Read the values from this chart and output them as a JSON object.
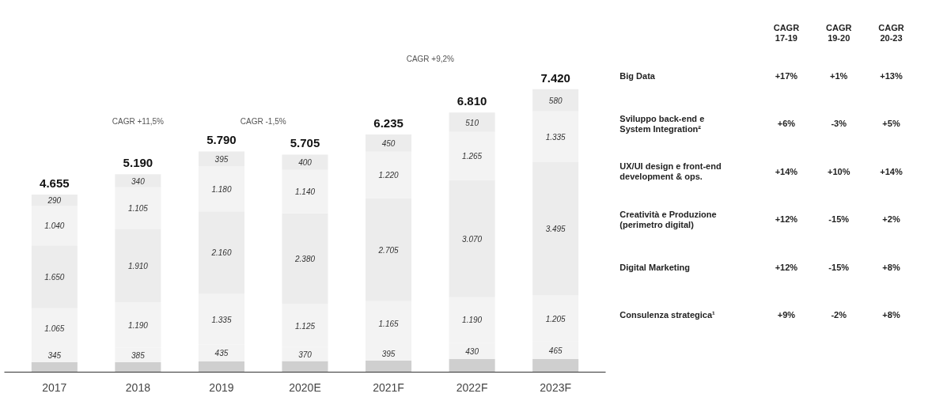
{
  "chart_data": [
    {
      "type": "bar",
      "stacked": true,
      "categories": [
        "2017",
        "2018",
        "2019",
        "2020E",
        "2021F",
        "2022F",
        "2023F"
      ],
      "series": [
        {
          "color": "#cfcfcf",
          "values": [
            265,
            260,
            285,
            290,
            300,
            345,
            340
          ]
        },
        {
          "color": "#f3f3f3",
          "values": [
            345,
            385,
            435,
            370,
            395,
            430,
            465
          ],
          "value_labels": [
            "345",
            "385",
            "435",
            "370",
            "395",
            "430",
            "465"
          ]
        },
        {
          "color": "#f3f3f3",
          "values": [
            1065,
            1190,
            1335,
            1125,
            1165,
            1190,
            1205
          ],
          "value_labels": [
            "1.065",
            "1.190",
            "1.335",
            "1.125",
            "1.165",
            "1.190",
            "1.205"
          ]
        },
        {
          "color": "#ececec",
          "values": [
            1650,
            1910,
            2160,
            2380,
            2705,
            3070,
            3495
          ],
          "value_labels": [
            "1.650",
            "1.910",
            "2.160",
            "2.380",
            "2.705",
            "3.070",
            "3.495"
          ]
        },
        {
          "color": "#f3f3f3",
          "values": [
            1040,
            1105,
            1180,
            1140,
            1220,
            1265,
            1335
          ],
          "value_labels": [
            "1.040",
            "1.105",
            "1.180",
            "1.140",
            "1.220",
            "1.265",
            "1.335"
          ]
        },
        {
          "color": "#ececec",
          "values": [
            290,
            340,
            395,
            400,
            450,
            510,
            580
          ],
          "value_labels": [
            "290",
            "340",
            "395",
            "400",
            "450",
            "510",
            "580"
          ]
        }
      ],
      "totals": [
        "4.655",
        "5.190",
        "5.790",
        "5.705",
        "6.235",
        "6.810",
        "7.420"
      ],
      "annotations": [
        "CAGR +11,5%",
        "CAGR -1,5%",
        "CAGR +9,2%"
      ],
      "grid": false
    },
    {
      "type": "other",
      "categories": [
        "CAGR 17-19",
        "CAGR 19-20",
        "CAGR 20-23"
      ],
      "y_categories": [
        "Big Data",
        "Sviluppo back-end e System Integration²",
        "UX/UI design e front-end development & ops.",
        "Creatività e Produzione (perimetro digital)",
        "Digital Marketing",
        "Consulenza strategica¹"
      ],
      "cell_labels": [
        [
          "+17%",
          "+1%",
          "+13%"
        ],
        [
          "+6%",
          "-3%",
          "+5%"
        ],
        [
          "+14%",
          "+10%",
          "+14%"
        ],
        [
          "+12%",
          "-15%",
          "+2%"
        ],
        [
          "+12%",
          "-15%",
          "+8%"
        ],
        [
          "+9%",
          "-2%",
          "+8%"
        ]
      ]
    }
  ]
}
